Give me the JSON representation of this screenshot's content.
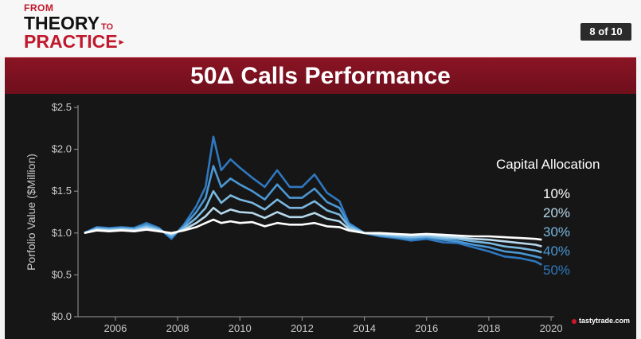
{
  "header": {
    "logo_line1": "FROM",
    "logo_line2": "THEORY",
    "logo_line2_small": "TO",
    "logo_line3": "PRACTICE",
    "logo_arrow": "▸",
    "page_indicator": "8 of 10"
  },
  "slide": {
    "title": "50Δ Calls Performance"
  },
  "brand": {
    "name": "tastytrade",
    "suffix": ".com"
  },
  "colors": {
    "accent": "#7c1220",
    "series": [
      "#ffffff",
      "#b8d8ec",
      "#7ab8e0",
      "#4a97d4",
      "#2f78c0"
    ]
  },
  "chart_data": {
    "type": "line",
    "title": "",
    "xlabel": "",
    "ylabel": "Porfolio Value ($Million)",
    "xlim": [
      2004.8,
      2020.1
    ],
    "ylim": [
      0.0,
      2.5
    ],
    "xticks": [
      2006,
      2008,
      2010,
      2012,
      2014,
      2016,
      2018,
      2020
    ],
    "xtick_labels": [
      "2006",
      "2008",
      "2010",
      "2012",
      "2014",
      "2016",
      "2018",
      "2020"
    ],
    "yticks": [
      0.0,
      0.5,
      1.0,
      1.5,
      2.0,
      2.5
    ],
    "ytick_labels": [
      "$0.0",
      "$0.5",
      "$1.0",
      "$1.5",
      "$2.0",
      "$2.5"
    ],
    "grid": false,
    "legend_title": "Capital Allocation",
    "legend_position": "right",
    "x": [
      2005.0,
      2005.4,
      2005.8,
      2006.2,
      2006.6,
      2007.0,
      2007.4,
      2007.8,
      2008.2,
      2008.6,
      2008.9,
      2009.15,
      2009.4,
      2009.7,
      2010.0,
      2010.4,
      2010.8,
      2011.2,
      2011.6,
      2012.0,
      2012.4,
      2012.8,
      2013.2,
      2013.5,
      2014.0,
      2014.5,
      2015.0,
      2015.5,
      2016.0,
      2016.5,
      2017.0,
      2017.5,
      2018.0,
      2018.5,
      2019.0,
      2019.5,
      2019.7
    ],
    "series": [
      {
        "name": "10%",
        "values": [
          1.0,
          1.03,
          1.02,
          1.03,
          1.02,
          1.04,
          1.02,
          1.0,
          1.03,
          1.07,
          1.12,
          1.16,
          1.12,
          1.14,
          1.12,
          1.13,
          1.08,
          1.12,
          1.1,
          1.1,
          1.12,
          1.08,
          1.07,
          1.03,
          1.0,
          1.0,
          0.99,
          0.98,
          0.99,
          0.98,
          0.97,
          0.96,
          0.96,
          0.95,
          0.94,
          0.93,
          0.92
        ]
      },
      {
        "name": "20%",
        "values": [
          1.0,
          1.04,
          1.03,
          1.04,
          1.03,
          1.06,
          1.03,
          0.99,
          1.04,
          1.12,
          1.2,
          1.3,
          1.23,
          1.28,
          1.25,
          1.24,
          1.18,
          1.25,
          1.19,
          1.19,
          1.24,
          1.17,
          1.14,
          1.05,
          1.0,
          0.99,
          0.98,
          0.97,
          0.98,
          0.96,
          0.95,
          0.93,
          0.92,
          0.9,
          0.88,
          0.86,
          0.84
        ]
      },
      {
        "name": "30%",
        "values": [
          1.0,
          1.05,
          1.04,
          1.05,
          1.04,
          1.08,
          1.04,
          0.97,
          1.06,
          1.18,
          1.3,
          1.5,
          1.36,
          1.45,
          1.4,
          1.36,
          1.28,
          1.4,
          1.3,
          1.3,
          1.38,
          1.27,
          1.22,
          1.08,
          1.0,
          0.98,
          0.96,
          0.95,
          0.96,
          0.94,
          0.93,
          0.9,
          0.88,
          0.84,
          0.82,
          0.79,
          0.77
        ]
      },
      {
        "name": "40%",
        "values": [
          1.0,
          1.06,
          1.05,
          1.06,
          1.05,
          1.1,
          1.05,
          0.95,
          1.08,
          1.25,
          1.42,
          1.8,
          1.55,
          1.65,
          1.58,
          1.5,
          1.4,
          1.58,
          1.42,
          1.42,
          1.53,
          1.37,
          1.3,
          1.1,
          1.0,
          0.97,
          0.95,
          0.93,
          0.95,
          0.92,
          0.9,
          0.86,
          0.83,
          0.78,
          0.76,
          0.72,
          0.7
        ]
      },
      {
        "name": "50%",
        "values": [
          1.0,
          1.07,
          1.06,
          1.07,
          1.06,
          1.12,
          1.06,
          0.93,
          1.1,
          1.32,
          1.55,
          2.15,
          1.75,
          1.88,
          1.78,
          1.66,
          1.55,
          1.75,
          1.55,
          1.55,
          1.7,
          1.48,
          1.38,
          1.12,
          1.0,
          0.96,
          0.94,
          0.91,
          0.93,
          0.89,
          0.88,
          0.83,
          0.78,
          0.72,
          0.7,
          0.66,
          0.62
        ]
      }
    ]
  }
}
